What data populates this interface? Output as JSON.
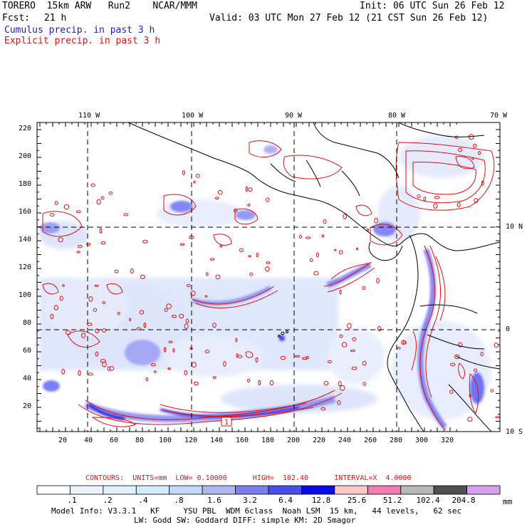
{
  "header": {
    "model": "TORERO  15km ARW   Run2    NCAR/MMM",
    "init": "Init: 06 UTC Sun 26 Feb 12",
    "fcst_label": "Fcst:",
    "fcst_hours": "21 h",
    "valid": "Valid: 03 UTC Mon 27 Feb 12 (21 CST Sun 26 Feb 12)",
    "line_blue": "Cumulus precip. in past 3 h",
    "line_red": "Explicit precip. in past 3 h"
  },
  "map": {
    "lon_labels": [
      "110 W",
      "100 W",
      "90 W",
      "80 W",
      "70 W"
    ],
    "lat_labels": [
      "10 N",
      "0",
      "10 S"
    ],
    "y_ticks": [
      "220",
      "200",
      "180",
      "160",
      "140",
      "120",
      "100",
      "80",
      "60",
      "40",
      "20"
    ],
    "x_ticks": [
      "20",
      "40",
      "60",
      "80",
      "100",
      "120",
      "140",
      "160",
      "180",
      "200",
      "220",
      "240",
      "260",
      "280",
      "300",
      "320"
    ],
    "marker": "1",
    "colors": {
      "contour": "#e01010",
      "border": "#000000",
      "grid": "#000000"
    }
  },
  "contours": {
    "text": "CONTOURS:  UNITS=mm  LOW= 0.10000      HIGH=  102.40      INTERVAL=X  4.0000"
  },
  "colorbar": {
    "unit": "mm",
    "labels": [
      ".1",
      ".2",
      ".4",
      ".8",
      "1.6",
      "3.2",
      "6.4",
      "12.8",
      "25.6",
      "51.2",
      "102.4",
      "204.8"
    ],
    "colors": [
      "#ffffff",
      "#eef2ff",
      "#e0f0ff",
      "#d2ecfc",
      "#c4d8fa",
      "#b0b8f4",
      "#7c7ef0",
      "#4a4cec",
      "#0a0ae6",
      "#fcc8c8",
      "#f07cb0",
      "#b8b8b8",
      "#505050",
      "#d8a0f0"
    ]
  },
  "footer": {
    "line1": "Model Info: V3.3.1   KF     YSU PBL  WDM 6class  Noah LSM  15 km,   44 levels,   62 sec",
    "line2": "LW: Godd SW: Goddard DIFF: simple KM: 2D Smagor"
  }
}
